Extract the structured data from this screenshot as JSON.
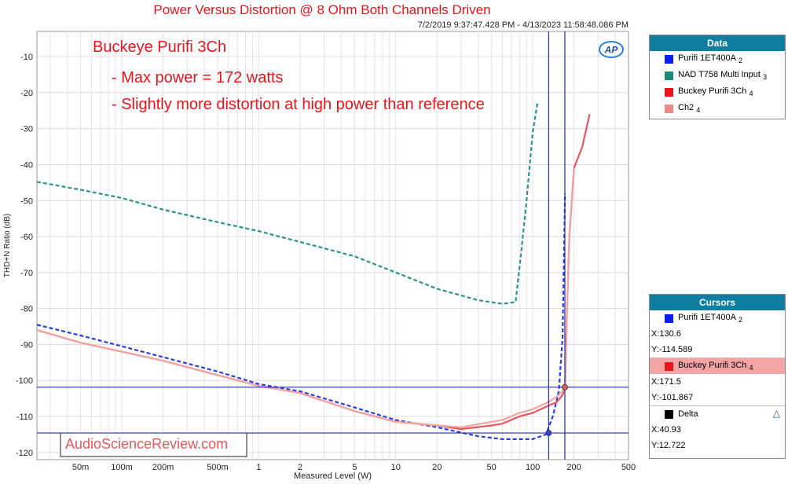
{
  "title": "Power Versus Distortion @ 8 Ohm Both Channels Driven",
  "subtitle": "7/2/2019 9:37:47.428 PM - 4/13/2023 11:58:48.086 PM",
  "annotations": [
    "Buckeye Purifi 3Ch",
    "- Max power = 172 watts",
    "- Slightly more distortion at high power than reference"
  ],
  "watermark": "AudioScienceReview.com",
  "logo": "AP",
  "colors": {
    "title": "#e8141b",
    "annotation": "#e8141b",
    "panel_header": "#0f7ea0",
    "cursor_lines": "#1f2ea8",
    "purifi": "#2b3ee0",
    "nad": "#2e9482",
    "buckey": "#e8575d",
    "ch2": "#f2a3a3"
  },
  "data_panel": {
    "header": "Data",
    "items": [
      {
        "label": "Purifi 1ET400A",
        "sub": "2",
        "color": "#0a1ef0"
      },
      {
        "label": "NAD T758 Multi Input",
        "sub": "3",
        "color": "#1a8a7a"
      },
      {
        "label": "Buckey Purifi 3Ch",
        "sub": "4",
        "color": "#e8141b"
      },
      {
        "label": "Ch2",
        "sub": "4",
        "color": "#f08a8a"
      }
    ]
  },
  "cursors_panel": {
    "header": "Cursors",
    "c1": {
      "label": "Purifi 1ET400A",
      "sub": "2",
      "color": "#0a1ef0",
      "x": "X:130.6",
      "y": "Y:-114.589"
    },
    "c2": {
      "label": "Buckey Purifi 3Ch",
      "sub": "4",
      "color": "#e8141b",
      "x": "X:171.5",
      "y": "Y:-101.867"
    },
    "delta": {
      "label": "Delta",
      "color": "#000000",
      "icon": "delta-triangle-icon",
      "x": "X:40.93",
      "y": "Y:12.722"
    }
  },
  "chart_data": {
    "type": "line",
    "xscale": "log",
    "xlabel": "Measured Level (W)",
    "ylabel": "THD+N Ratio (dB)",
    "xlim": [
      0.024,
      500
    ],
    "ylim": [
      -122,
      -3
    ],
    "grid": true,
    "xticks": [
      {
        "v": 0.05,
        "label": "50m"
      },
      {
        "v": 0.1,
        "label": "100m"
      },
      {
        "v": 0.2,
        "label": "200m"
      },
      {
        "v": 0.5,
        "label": "500m"
      },
      {
        "v": 1,
        "label": "1"
      },
      {
        "v": 2,
        "label": "2"
      },
      {
        "v": 5,
        "label": "5"
      },
      {
        "v": 10,
        "label": "10"
      },
      {
        "v": 20,
        "label": "20"
      },
      {
        "v": 50,
        "label": "50"
      },
      {
        "v": 100,
        "label": "100"
      },
      {
        "v": 200,
        "label": "200"
      },
      {
        "v": 500,
        "label": "500"
      }
    ],
    "yticks": [
      -10,
      -20,
      -30,
      -40,
      -50,
      -60,
      -70,
      -80,
      -90,
      -100,
      -110,
      -120
    ],
    "cursor_x": [
      130.6,
      171.5
    ],
    "cursor_y": [
      -114.589,
      -101.867
    ],
    "series": [
      {
        "name": "Purifi 1ET400A",
        "style": "dashed",
        "color": "#2b3ee0",
        "x": [
          0.024,
          0.05,
          0.1,
          0.2,
          0.5,
          1,
          2,
          5,
          10,
          20,
          40,
          60,
          100,
          125,
          140,
          155,
          165,
          172
        ],
        "y": [
          -84.5,
          -87.5,
          -90.5,
          -93.5,
          -97.5,
          -101,
          -103,
          -107.5,
          -111,
          -113,
          -115.5,
          -116.3,
          -116.3,
          -115,
          -110,
          -103,
          -88,
          -48
        ]
      },
      {
        "name": "NAD T758 Multi Input",
        "style": "dashed",
        "color": "#2e9482",
        "x": [
          0.024,
          0.05,
          0.1,
          0.2,
          0.5,
          1,
          2,
          5,
          10,
          20,
          40,
          60,
          75,
          82,
          90,
          100,
          108
        ],
        "y": [
          -44.8,
          -47,
          -49.3,
          -52.5,
          -56,
          -58.5,
          -61.5,
          -65.5,
          -70,
          -74.5,
          -77.7,
          -78.7,
          -78.2,
          -65,
          -50,
          -31,
          -23
        ]
      },
      {
        "name": "Buckey Purifi 3Ch",
        "style": "solid",
        "color": "#e8575d",
        "x": [
          0.024,
          0.05,
          0.1,
          0.2,
          0.5,
          1,
          2,
          5,
          10,
          20,
          30,
          50,
          60,
          80,
          100,
          130,
          150,
          165,
          172,
          178,
          185,
          200,
          230,
          260
        ],
        "y": [
          -86,
          -89.5,
          -92,
          -94.5,
          -98.5,
          -101.5,
          -103.5,
          -108.5,
          -111.5,
          -112.5,
          -113.5,
          -112.5,
          -112,
          -110,
          -109,
          -107,
          -106,
          -104,
          -101.9,
          -80,
          -60,
          -41,
          -35,
          -26
        ]
      },
      {
        "name": "Ch2",
        "style": "solid",
        "color": "#f2a3a3",
        "x": [
          0.024,
          0.05,
          0.1,
          0.2,
          0.5,
          1,
          2,
          5,
          10,
          20,
          30,
          50,
          60,
          80,
          100,
          130,
          150,
          165,
          172,
          178,
          185,
          200
        ],
        "y": [
          -86,
          -89.5,
          -92,
          -94.5,
          -98.5,
          -101.5,
          -103.5,
          -108.5,
          -111.5,
          -112.5,
          -113,
          -111.5,
          -111,
          -109,
          -108,
          -106,
          -104.5,
          -103,
          -101.5,
          -80,
          -60,
          -41
        ]
      }
    ]
  }
}
